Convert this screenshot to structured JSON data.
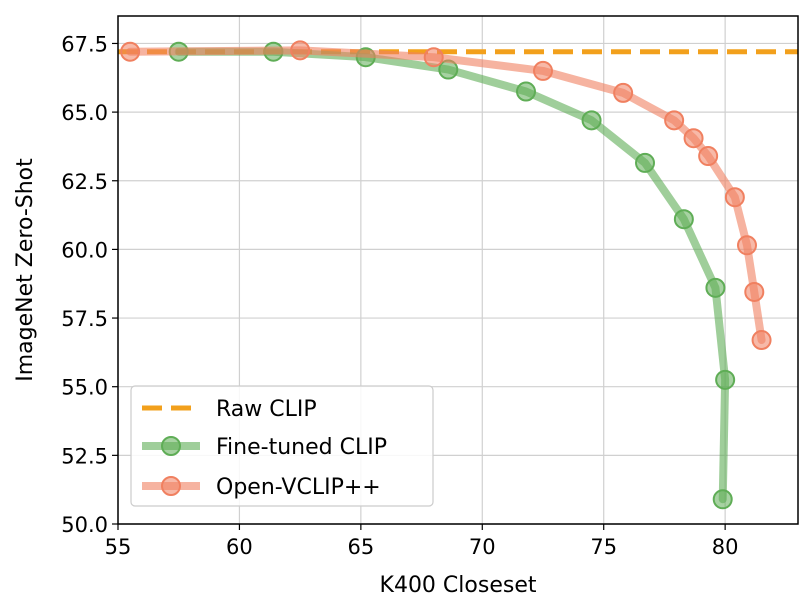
{
  "chart_data": {
    "type": "line",
    "title": "",
    "xlabel": "K400 Closeset",
    "ylabel": "ImageNet Zero-Shot",
    "xlim": [
      55,
      83
    ],
    "ylim": [
      50,
      68.5
    ],
    "xticks": [
      55,
      60,
      65,
      70,
      75,
      80
    ],
    "yticks": [
      50.0,
      52.5,
      55.0,
      57.5,
      60.0,
      62.5,
      65.0,
      67.5
    ],
    "xtick_labels": [
      "55",
      "60",
      "65",
      "70",
      "75",
      "80"
    ],
    "ytick_labels": [
      "50.0",
      "52.5",
      "55.0",
      "57.5",
      "60.0",
      "62.5",
      "65.0",
      "67.5"
    ],
    "grid": true,
    "legend_position": "lower-left",
    "series": [
      {
        "name": "Raw CLIP",
        "style": "dashed",
        "color": "#f2a01c",
        "y_constant": 67.2
      },
      {
        "name": "Fine-tuned CLIP",
        "style": "line-marker",
        "color": "#5fad56",
        "x": [
          57.5,
          61.4,
          65.2,
          68.6,
          71.8,
          74.5,
          76.7,
          78.3,
          79.6,
          80.0,
          79.9
        ],
        "y": [
          67.2,
          67.2,
          67.0,
          66.55,
          65.75,
          64.7,
          63.15,
          61.1,
          58.6,
          55.25,
          50.9
        ]
      },
      {
        "name": "Open-VCLIP++",
        "style": "line-marker",
        "color": "#f08060",
        "x": [
          55.5,
          62.5,
          68.0,
          72.5,
          75.8,
          77.9,
          78.7,
          79.3,
          80.4,
          80.9,
          81.2,
          81.5
        ],
        "y": [
          67.2,
          67.25,
          67.0,
          66.5,
          65.7,
          64.7,
          64.05,
          63.4,
          61.9,
          60.15,
          58.45,
          56.7
        ]
      }
    ]
  }
}
